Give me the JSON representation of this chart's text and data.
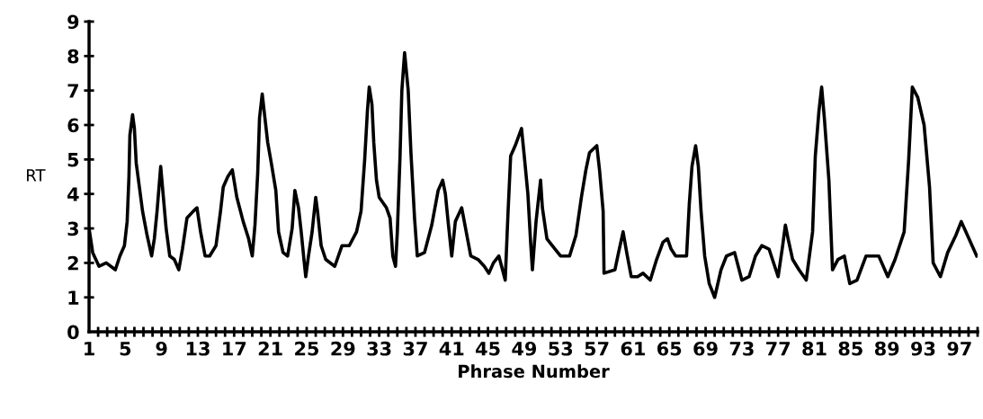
{
  "chart_data": {
    "type": "line",
    "xlabel": "Phrase Number",
    "ylabel": "RT",
    "xlim": [
      1,
      99
    ],
    "ylim": [
      0,
      9
    ],
    "yticks": [
      0,
      1,
      2,
      3,
      4,
      5,
      6,
      7,
      8,
      9
    ],
    "xticks": [
      1,
      {
        "value": 2,
        "label": null
      },
      {
        "value": 3,
        "label": null
      },
      {
        "value": 4,
        "label": null
      },
      5,
      {
        "value": 6,
        "label": null
      },
      {
        "value": 7,
        "label": null
      },
      {
        "value": 8,
        "label": null
      },
      9,
      {
        "value": 10,
        "label": null
      },
      {
        "value": 11,
        "label": null
      },
      {
        "value": 12,
        "label": null
      },
      13,
      {
        "value": 14,
        "label": null
      },
      {
        "value": 15,
        "label": null
      },
      {
        "value": 16,
        "label": null
      },
      17,
      {
        "value": 18,
        "label": null
      },
      {
        "value": 19,
        "label": null
      },
      {
        "value": 20,
        "label": null
      },
      21,
      {
        "value": 22,
        "label": null
      },
      {
        "value": 23,
        "label": null
      },
      {
        "value": 24,
        "label": null
      },
      25,
      {
        "value": 26,
        "label": null
      },
      {
        "value": 27,
        "label": null
      },
      {
        "value": 28,
        "label": null
      },
      29,
      {
        "value": 30,
        "label": null
      },
      {
        "value": 31,
        "label": null
      },
      {
        "value": 32,
        "label": null
      },
      33,
      {
        "value": 34,
        "label": null
      },
      {
        "value": 35,
        "label": null
      },
      {
        "value": 36,
        "label": null
      },
      37,
      {
        "value": 38,
        "label": null
      },
      {
        "value": 39,
        "label": null
      },
      {
        "value": 40,
        "label": null
      },
      41,
      {
        "value": 42,
        "label": null
      },
      {
        "value": 43,
        "label": null
      },
      {
        "value": 44,
        "label": null
      },
      45,
      {
        "value": 46,
        "label": null
      },
      {
        "value": 47,
        "label": null
      },
      {
        "value": 48,
        "label": null
      },
      49,
      {
        "value": 50,
        "label": null
      },
      {
        "value": 51,
        "label": null
      },
      {
        "value": 52,
        "label": null
      },
      53,
      {
        "value": 54,
        "label": null
      },
      {
        "value": 55,
        "label": null
      },
      {
        "value": 56,
        "label": null
      },
      57,
      {
        "value": 58,
        "label": null
      },
      {
        "value": 59,
        "label": null
      },
      {
        "value": 60,
        "label": null
      },
      61,
      {
        "value": 62,
        "label": null
      },
      {
        "value": 63,
        "label": null
      },
      {
        "value": 64,
        "label": null
      },
      65,
      {
        "value": 66,
        "label": null
      },
      {
        "value": 67,
        "label": null
      },
      {
        "value": 68,
        "label": null
      },
      69,
      {
        "value": 70,
        "label": null
      },
      {
        "value": 71,
        "label": null
      },
      {
        "value": 72,
        "label": null
      },
      73,
      {
        "value": 74,
        "label": null
      },
      {
        "value": 75,
        "label": null
      },
      {
        "value": 76,
        "label": null
      },
      77,
      {
        "value": 78,
        "label": null
      },
      {
        "value": 79,
        "label": null
      },
      {
        "value": 80,
        "label": null
      },
      81,
      {
        "value": 82,
        "label": null
      },
      {
        "value": 83,
        "label": null
      },
      {
        "value": 84,
        "label": null
      },
      85,
      {
        "value": 86,
        "label": null
      },
      {
        "value": 87,
        "label": null
      },
      {
        "value": 88,
        "label": null
      },
      89,
      {
        "value": 90,
        "label": null
      },
      {
        "value": 91,
        "label": null
      },
      {
        "value": 92,
        "label": null
      },
      93,
      {
        "value": 94,
        "label": null
      },
      {
        "value": 95,
        "label": null
      },
      {
        "value": 96,
        "label": null
      },
      97,
      {
        "value": 98,
        "label": null
      },
      {
        "value": 99,
        "label": null
      }
    ],
    "grid": false,
    "marker": "none",
    "line_style": "solid",
    "series": [
      {
        "color": "#000000",
        "x": [
          1.0,
          1.4,
          2.1,
          2.9,
          3.9,
          4.4,
          4.9,
          5.2,
          5.4,
          5.5,
          5.8,
          6.0,
          6.2,
          6.6,
          6.9,
          7.4,
          7.9,
          8.2,
          8.5,
          8.9,
          9.1,
          9.5,
          9.9,
          10.4,
          10.9,
          11.3,
          11.8,
          12.5,
          12.9,
          13.3,
          13.8,
          14.3,
          15.0,
          15.5,
          15.8,
          16.3,
          16.8,
          17.3,
          18.0,
          18.6,
          19.0,
          19.3,
          19.6,
          19.8,
          20.1,
          20.4,
          20.7,
          21.1,
          21.6,
          21.9,
          22.4,
          22.9,
          23.4,
          23.7,
          24.1,
          24.4,
          24.7,
          24.9,
          25.2,
          25.6,
          26.0,
          26.2,
          26.6,
          27.1,
          28.1,
          28.9,
          29.7,
          30.5,
          31.0,
          31.4,
          31.7,
          31.9,
          32.2,
          32.4,
          32.7,
          33.0,
          33.8,
          34.2,
          34.5,
          34.8,
          35.0,
          35.3,
          35.5,
          35.8,
          36.2,
          36.5,
          36.9,
          37.2,
          38.0,
          38.8,
          39.5,
          40.0,
          40.3,
          40.6,
          41.0,
          41.4,
          42.1,
          42.6,
          43.1,
          43.9,
          44.6,
          45.1,
          45.6,
          46.2,
          46.6,
          46.9,
          47.2,
          47.5,
          48.0,
          48.7,
          49.0,
          49.4,
          49.7,
          49.9,
          50.3,
          50.8,
          51.0,
          51.5,
          52.4,
          53.0,
          54.0,
          54.7,
          55.3,
          55.8,
          56.2,
          57.0,
          57.3,
          57.7,
          57.8,
          59.0,
          59.4,
          59.9,
          60.3,
          60.8,
          61.5,
          62.1,
          62.9,
          63.6,
          64.3,
          64.8,
          65.2,
          65.7,
          66.9,
          67.2,
          67.5,
          67.9,
          68.2,
          68.5,
          68.9,
          69.4,
          70.0,
          70.7,
          71.3,
          72.2,
          73.0,
          73.8,
          74.5,
          75.2,
          76.0,
          77.0,
          77.5,
          77.8,
          78.1,
          78.6,
          79.3,
          80.1,
          80.8,
          81.1,
          81.5,
          81.8,
          82.1,
          82.6,
          83.0,
          83.6,
          84.3,
          84.9,
          85.7,
          86.7,
          88.1,
          89.1,
          89.9,
          90.9,
          91.4,
          91.8,
          92.4,
          93.1,
          93.7,
          94.1,
          94.9,
          95.7,
          96.6,
          97.2,
          98.9
        ],
        "values": [
          3.0,
          2.3,
          1.9,
          2.0,
          1.8,
          2.2,
          2.5,
          3.2,
          4.5,
          5.7,
          6.3,
          5.9,
          4.9,
          4.1,
          3.5,
          2.8,
          2.2,
          2.7,
          3.5,
          4.8,
          4.2,
          3.0,
          2.2,
          2.1,
          1.8,
          2.4,
          3.3,
          3.5,
          3.6,
          2.9,
          2.2,
          2.2,
          2.5,
          3.5,
          4.2,
          4.5,
          4.7,
          3.9,
          3.2,
          2.7,
          2.2,
          3.1,
          4.6,
          6.2,
          6.9,
          6.2,
          5.5,
          4.9,
          4.1,
          2.9,
          2.3,
          2.2,
          3.0,
          4.1,
          3.6,
          2.9,
          2.1,
          1.6,
          2.2,
          2.9,
          3.9,
          3.5,
          2.5,
          2.1,
          1.9,
          2.5,
          2.5,
          2.9,
          3.5,
          5.0,
          6.4,
          7.1,
          6.6,
          5.5,
          4.4,
          3.9,
          3.6,
          3.3,
          2.2,
          1.9,
          2.9,
          5.1,
          7.0,
          8.1,
          7.0,
          5.2,
          3.3,
          2.2,
          2.3,
          3.1,
          4.1,
          4.4,
          4.0,
          3.2,
          2.2,
          3.2,
          3.6,
          2.9,
          2.2,
          2.1,
          1.9,
          1.7,
          2.0,
          2.2,
          1.8,
          1.5,
          3.4,
          5.1,
          5.4,
          5.9,
          5.1,
          4.0,
          2.6,
          1.8,
          3.2,
          4.4,
          3.6,
          2.7,
          2.4,
          2.2,
          2.2,
          2.8,
          3.9,
          4.7,
          5.2,
          5.4,
          4.7,
          3.5,
          1.7,
          1.8,
          2.3,
          2.9,
          2.3,
          1.6,
          1.6,
          1.7,
          1.5,
          2.1,
          2.6,
          2.7,
          2.4,
          2.2,
          2.2,
          3.7,
          4.8,
          5.4,
          4.8,
          3.5,
          2.2,
          1.4,
          1.0,
          1.8,
          2.2,
          2.3,
          1.5,
          1.6,
          2.2,
          2.5,
          2.4,
          1.6,
          2.5,
          3.1,
          2.7,
          2.1,
          1.8,
          1.5,
          2.9,
          5.1,
          6.4,
          7.1,
          6.2,
          4.4,
          1.8,
          2.1,
          2.2,
          1.4,
          1.5,
          2.2,
          2.2,
          1.6,
          2.1,
          2.9,
          5.0,
          7.1,
          6.8,
          6.0,
          4.2,
          2.0,
          1.6,
          2.3,
          2.8,
          3.2,
          2.2
        ]
      }
    ]
  }
}
